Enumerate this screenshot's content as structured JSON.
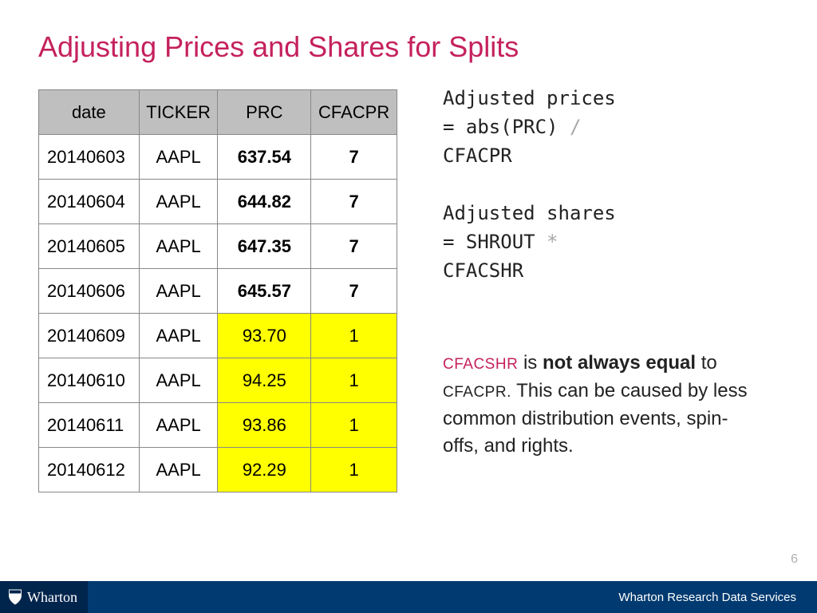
{
  "title": "Adjusting Prices and Shares for Splits",
  "table": {
    "columns": [
      "date",
      "TICKER",
      "PRC",
      "CFACPR"
    ],
    "col_widths": [
      "28%",
      "22%",
      "26%",
      "24%"
    ],
    "header_bg": "#bfbfbf",
    "border_color": "#888888",
    "highlight_bg": "#ffff00",
    "rows": [
      {
        "date": "20140603",
        "ticker": "AAPL",
        "prc": "637.54",
        "cfacpr": "7",
        "bold": true,
        "highlight": false
      },
      {
        "date": "20140604",
        "ticker": "AAPL",
        "prc": "644.82",
        "cfacpr": "7",
        "bold": true,
        "highlight": false
      },
      {
        "date": "20140605",
        "ticker": "AAPL",
        "prc": "647.35",
        "cfacpr": "7",
        "bold": true,
        "highlight": false
      },
      {
        "date": "20140606",
        "ticker": "AAPL",
        "prc": "645.57",
        "cfacpr": "7",
        "bold": true,
        "highlight": false
      },
      {
        "date": "20140609",
        "ticker": "AAPL",
        "prc": "93.70",
        "cfacpr": "1",
        "bold": false,
        "highlight": true
      },
      {
        "date": "20140610",
        "ticker": "AAPL",
        "prc": "94.25",
        "cfacpr": "1",
        "bold": false,
        "highlight": true
      },
      {
        "date": "20140611",
        "ticker": "AAPL",
        "prc": "93.86",
        "cfacpr": "1",
        "bold": false,
        "highlight": true
      },
      {
        "date": "20140612",
        "ticker": "AAPL",
        "prc": "92.29",
        "cfacpr": "1",
        "bold": false,
        "highlight": true
      }
    ]
  },
  "code": {
    "line1a": "Adjusted prices",
    "line1b_a": "= abs(PRC) ",
    "line1b_op": "/",
    "line1c": "CFACPR",
    "line2a": "Adjusted shares",
    "line2b_a": "= SHROUT ",
    "line2b_op": "*",
    "line2c": "CFACSHR"
  },
  "note": {
    "term1": "CFACSHR",
    "mid1": " is ",
    "bold": "not always equal",
    "mid2": " to ",
    "term2": "CFACPR.",
    "rest": " This can be caused by less common distribution events, spin-offs, and rights."
  },
  "page_number": "6",
  "footer": {
    "bar_bg": "#003a70",
    "shield_bg": "#00254d",
    "logo_text": "Wharton",
    "right_text": "Wharton Research Data Services"
  }
}
